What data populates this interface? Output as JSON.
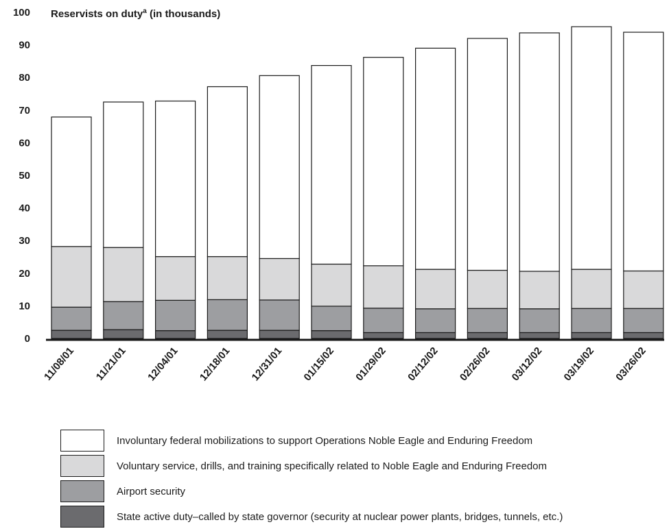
{
  "chart_data": {
    "type": "bar",
    "stacked": true,
    "title": "Reservists on duty",
    "title_superscript": "a",
    "title_suffix": " (in thousands)",
    "categories": [
      "11/08/01",
      "11/21/01",
      "12/04/01",
      "12/18/01",
      "12/31/01",
      "01/15/02",
      "01/29/02",
      "02/12/02",
      "02/26/02",
      "03/12/02",
      "03/19/02",
      "03/26/02"
    ],
    "ylim": [
      0,
      100
    ],
    "yticks": [
      0,
      10,
      20,
      30,
      40,
      50,
      60,
      70,
      80,
      90,
      100
    ],
    "grid": false,
    "series": [
      {
        "name": "State active duty–called by state governor (security at nuclear power plants, bridges, tunnels, etc.)",
        "color": "#6b6b6e",
        "values": [
          2.5,
          2.7,
          2.4,
          2.5,
          2.5,
          2.4,
          1.8,
          1.8,
          1.8,
          1.8,
          1.8,
          1.8
        ]
      },
      {
        "name": "Airport security",
        "color": "#9d9ea1",
        "values": [
          7.1,
          8.6,
          9.3,
          9.4,
          9.3,
          7.5,
          7.5,
          7.3,
          7.4,
          7.3,
          7.4,
          7.4
        ]
      },
      {
        "name": "Voluntary service, drills, and training specifically related to Noble Eagle and Enduring Freedom",
        "color": "#d9d9da",
        "values": [
          18.6,
          16.6,
          13.4,
          13.2,
          12.7,
          12.9,
          13.0,
          12.1,
          11.7,
          11.5,
          12.0,
          11.5
        ]
      },
      {
        "name": "Involuntary federal mobilizations to support Operations Noble Eagle and Enduring Freedom",
        "color": "#ffffff",
        "values": [
          39.7,
          44.6,
          47.7,
          52.1,
          56.1,
          60.9,
          63.9,
          67.8,
          71.1,
          73.1,
          74.4,
          73.2
        ]
      }
    ]
  },
  "legend_order": [
    3,
    2,
    1,
    0
  ]
}
